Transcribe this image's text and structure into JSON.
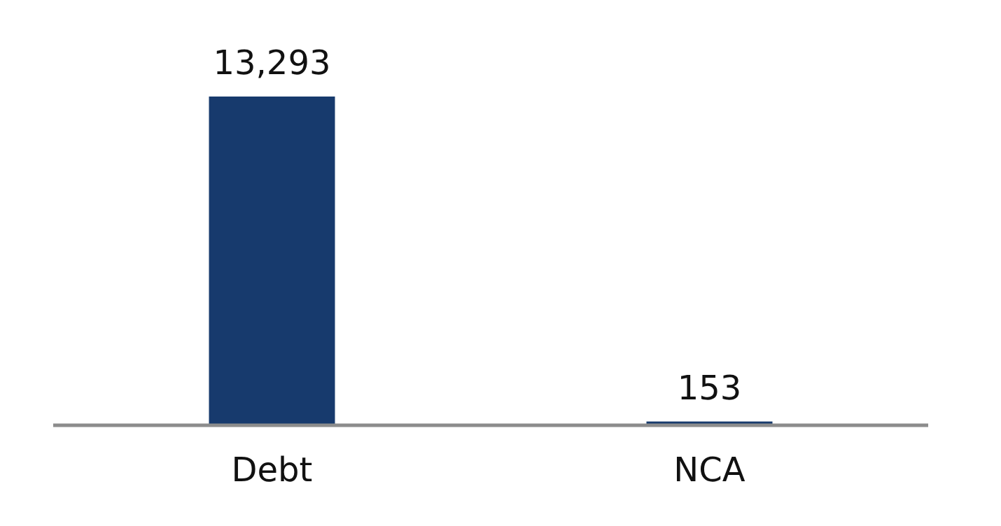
{
  "chart_data": {
    "type": "bar",
    "categories": [
      "Debt",
      "NCA"
    ],
    "values": [
      13293,
      153
    ],
    "value_labels": [
      "13,293",
      "153"
    ],
    "color": "#173a6d"
  }
}
